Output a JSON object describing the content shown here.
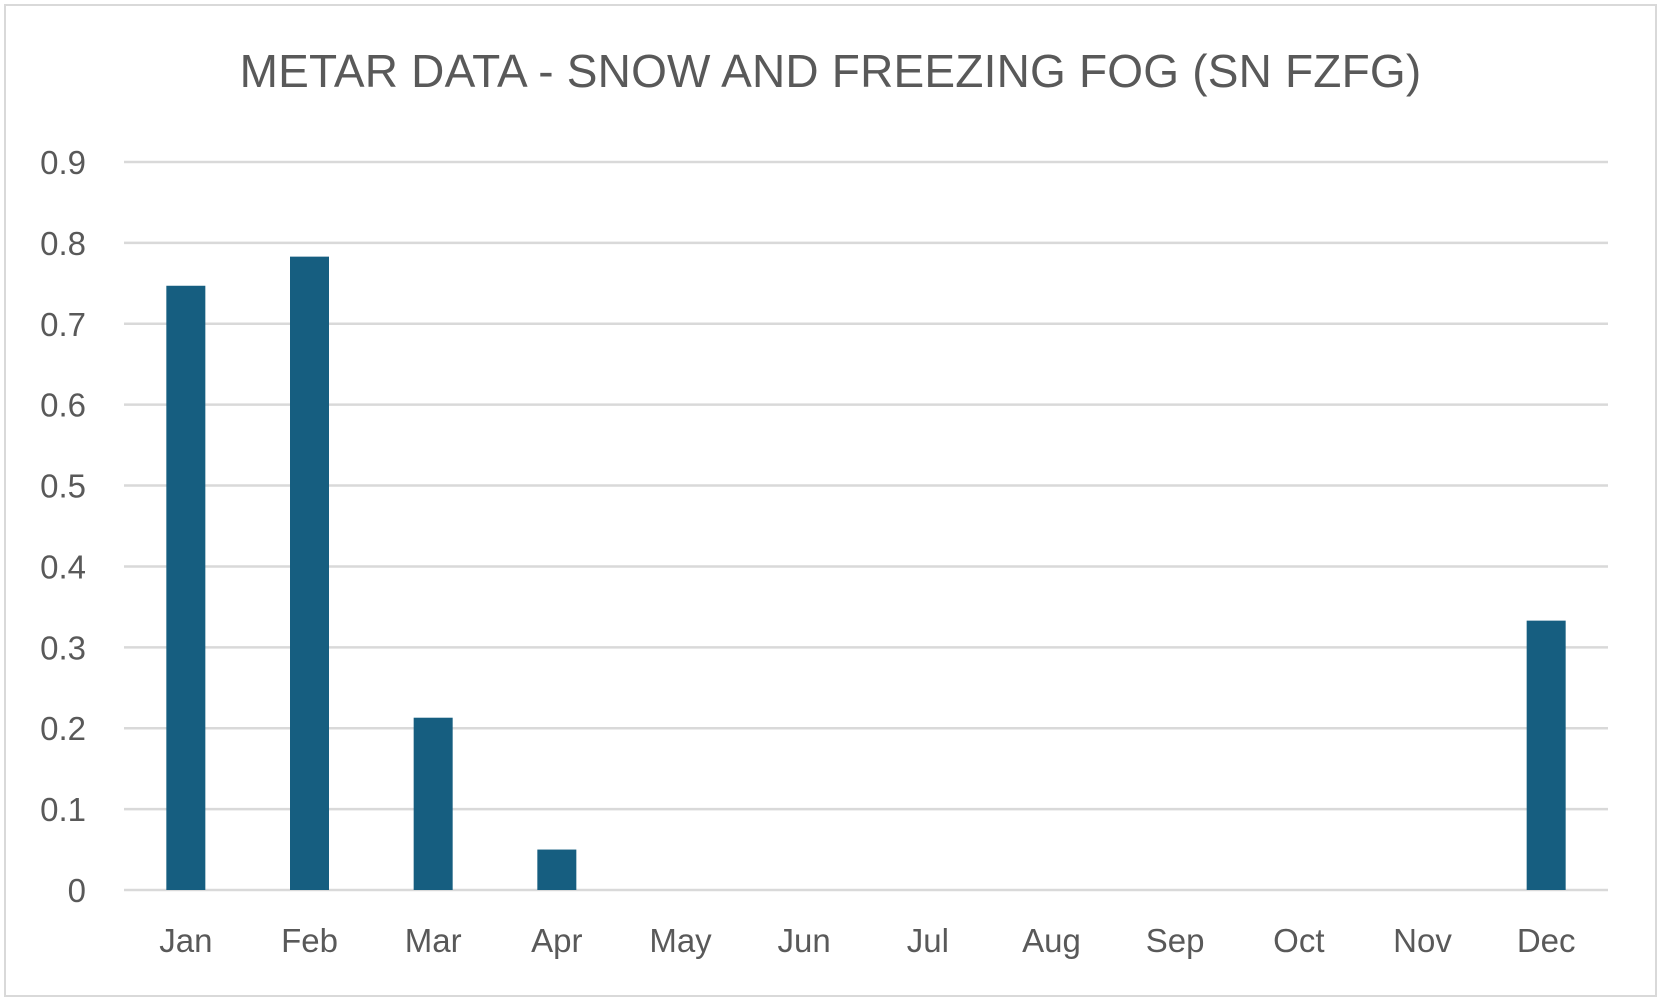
{
  "chart_data": {
    "type": "bar",
    "title": "METAR DATA - SNOW AND FREEZING FOG (SN FZFG)",
    "categories": [
      "Jan",
      "Feb",
      "Mar",
      "Apr",
      "May",
      "Jun",
      "Jul",
      "Aug",
      "Sep",
      "Oct",
      "Nov",
      "Dec"
    ],
    "values": [
      0.747,
      0.783,
      0.213,
      0.05,
      0,
      0,
      0,
      0,
      0,
      0,
      0,
      0.333
    ],
    "ylim": [
      0,
      0.9
    ],
    "yticks": [
      "0",
      "0.1",
      "0.2",
      "0.3",
      "0.4",
      "0.5",
      "0.6",
      "0.7",
      "0.8",
      "0.9"
    ],
    "grid": true,
    "legend": "none",
    "colors": {
      "bar": "#165e80",
      "grid": "#d9d9d9",
      "text": "#595959"
    }
  }
}
